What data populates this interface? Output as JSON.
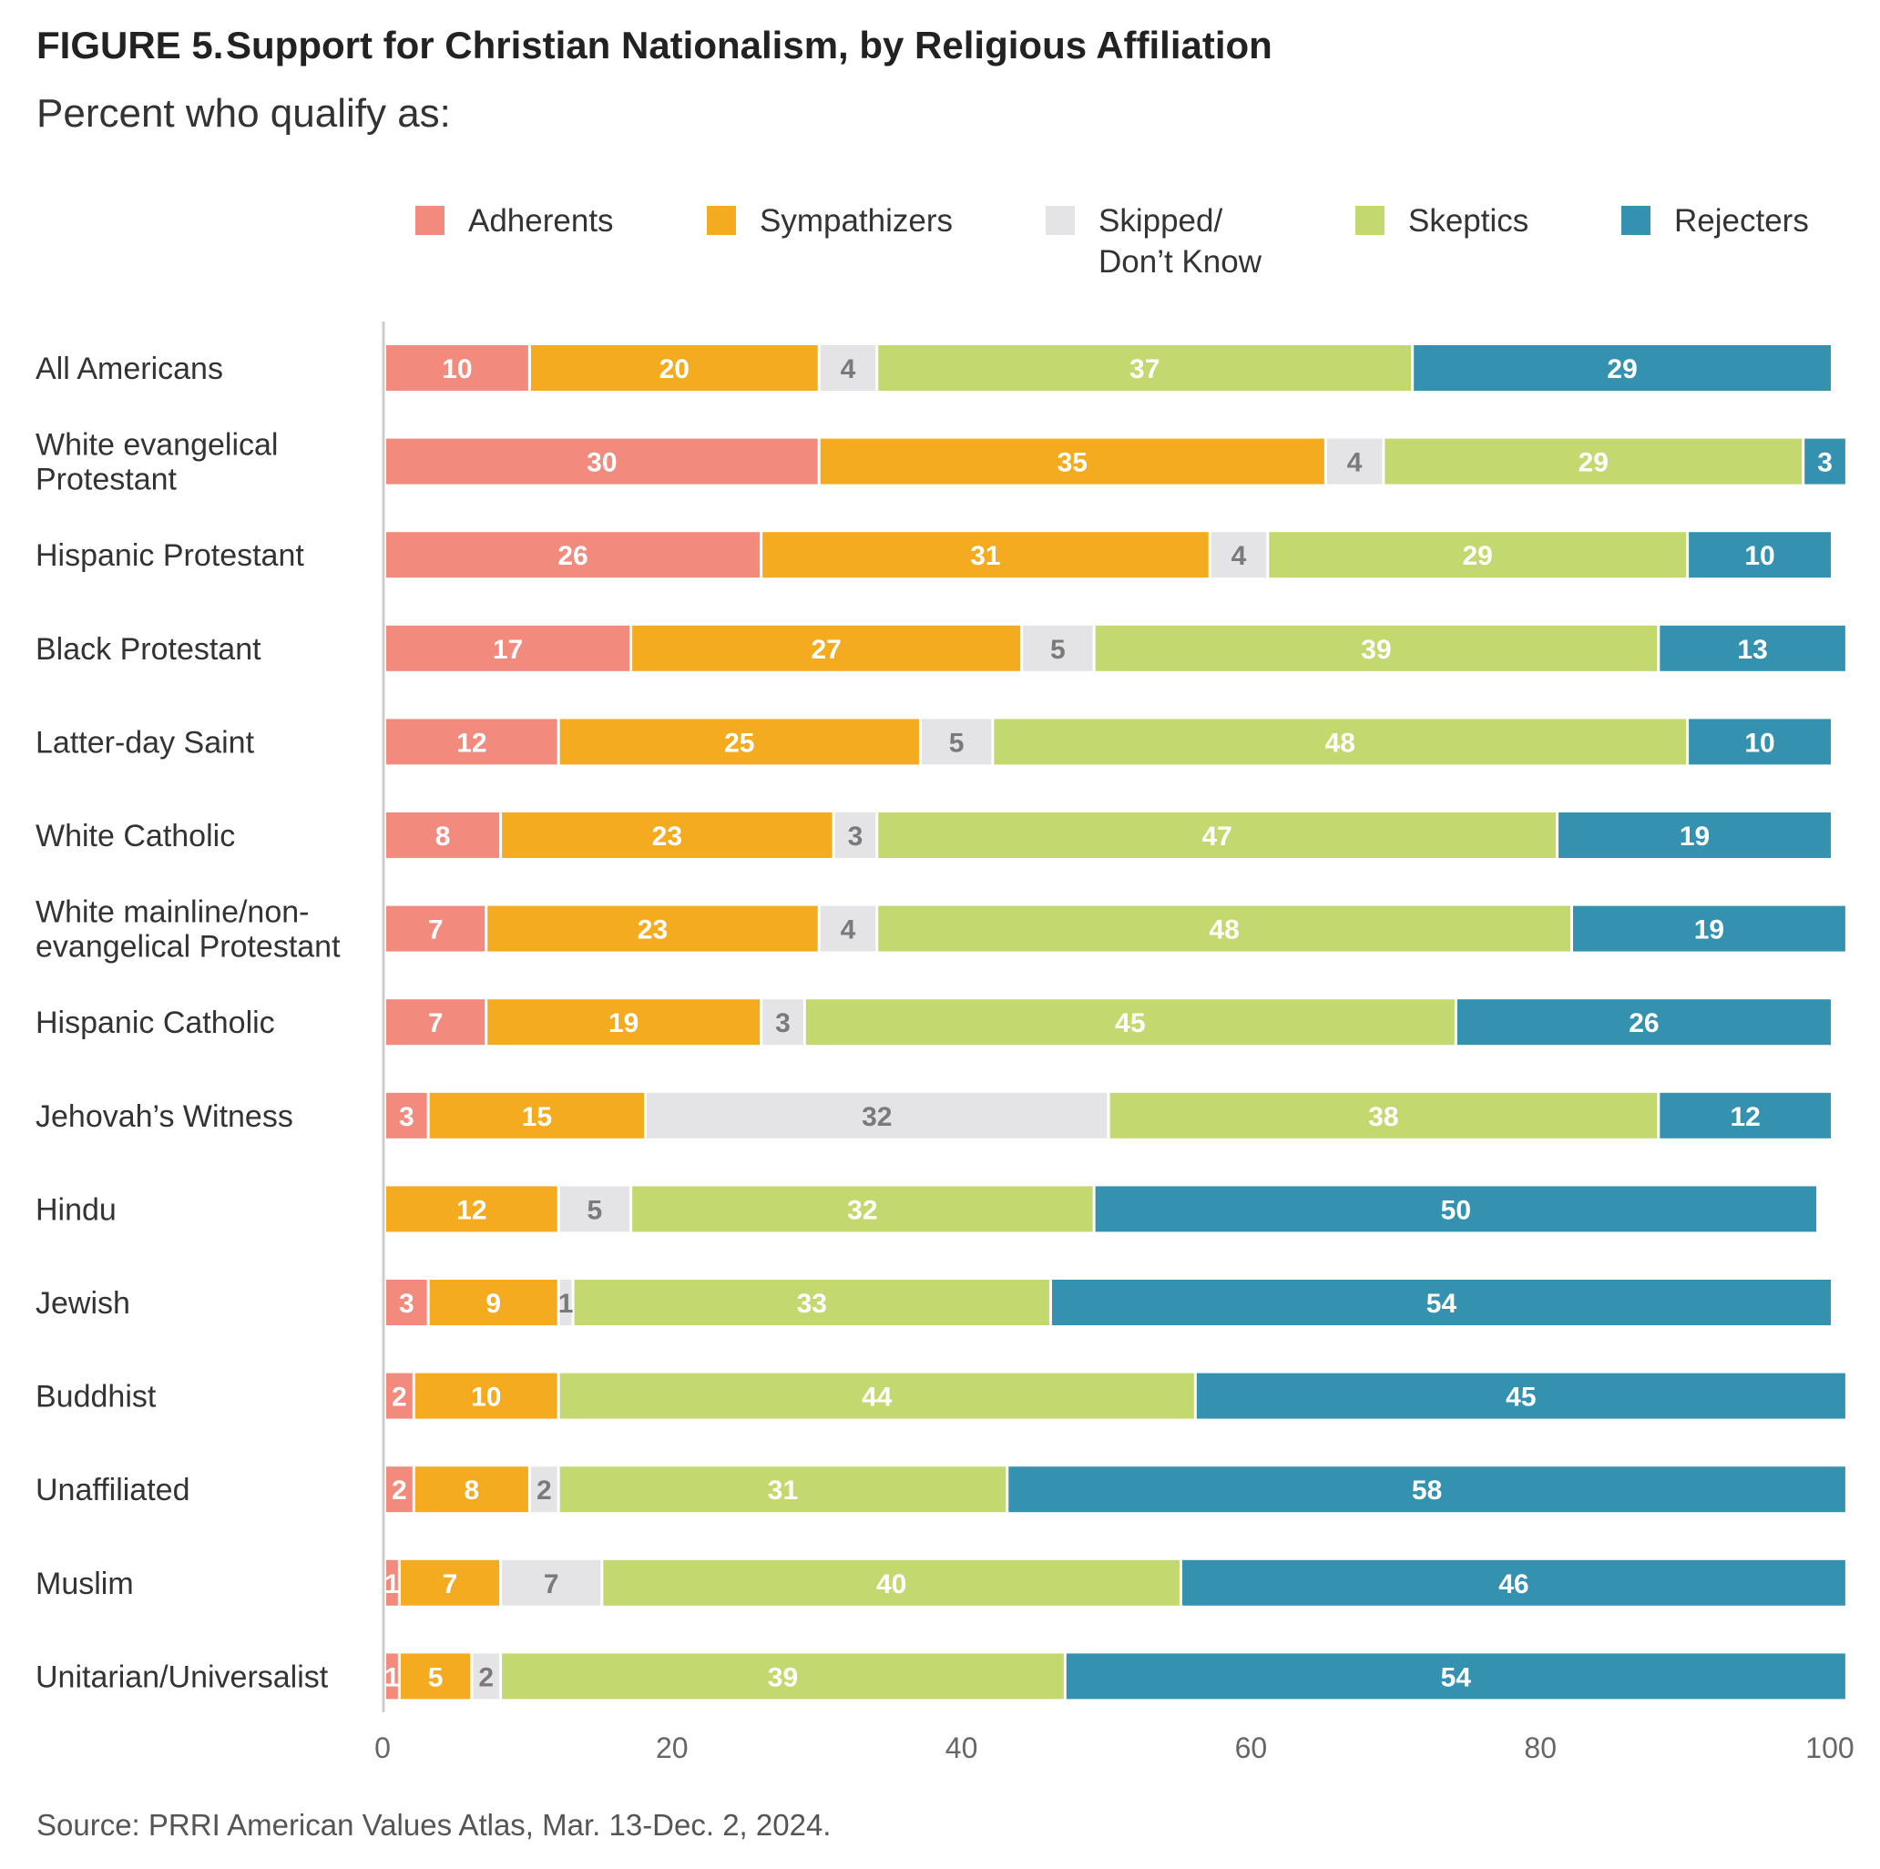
{
  "header": {
    "figure_label": "FIGURE 5.",
    "title": "Support for Christian Nationalism, by Religious Affiliation",
    "subtitle": "Percent who qualify as:"
  },
  "source": "Source: PRRI American Values Atlas, Mar. 13-Dec. 2, 2024.",
  "colors": {
    "Adherents": "#f28b7e",
    "Sympathizers": "#f5ab1f",
    "Skipped/ Don't Know": "#e4e4e6",
    "Skeptics": "#c3d86e",
    "Rejecters": "#3492b0",
    "light_text": "#ffffff",
    "dark_text": "#7a7a7a"
  },
  "chart_data": {
    "type": "bar",
    "orientation": "horizontal",
    "stacked": true,
    "xlim": [
      0,
      100
    ],
    "xticks": [
      0,
      20,
      40,
      60,
      80,
      100
    ],
    "legend_position": "top",
    "legend": [
      {
        "name": "Adherents",
        "lines": [
          "Adherents"
        ]
      },
      {
        "name": "Sympathizers",
        "lines": [
          "Sympathizers"
        ]
      },
      {
        "name": "Skipped/ Don't Know",
        "lines": [
          "Skipped/",
          "Don’t Know"
        ]
      },
      {
        "name": "Skeptics",
        "lines": [
          "Skeptics"
        ]
      },
      {
        "name": "Rejecters",
        "lines": [
          "Rejecters"
        ]
      }
    ],
    "categories": [
      {
        "label": [
          "All Americans"
        ]
      },
      {
        "label": [
          "White evangelical",
          "Protestant"
        ]
      },
      {
        "label": [
          "Hispanic Protestant"
        ]
      },
      {
        "label": [
          "Black Protestant"
        ]
      },
      {
        "label": [
          "Latter-day Saint"
        ]
      },
      {
        "label": [
          "White Catholic"
        ]
      },
      {
        "label": [
          "White mainline/non-",
          "evangelical Protestant"
        ]
      },
      {
        "label": [
          "Hispanic Catholic"
        ]
      },
      {
        "label": [
          "Jehovah’s Witness"
        ]
      },
      {
        "label": [
          "Hindu"
        ]
      },
      {
        "label": [
          "Jewish"
        ]
      },
      {
        "label": [
          "Buddhist"
        ]
      },
      {
        "label": [
          "Unaffiliated"
        ]
      },
      {
        "label": [
          "Muslim"
        ]
      },
      {
        "label": [
          "Unitarian/Universalist"
        ]
      }
    ],
    "series": [
      {
        "name": "Adherents",
        "values": [
          10,
          30,
          26,
          17,
          12,
          8,
          7,
          7,
          3,
          0,
          3,
          2,
          2,
          1,
          1
        ]
      },
      {
        "name": "Sympathizers",
        "values": [
          20,
          35,
          31,
          27,
          25,
          23,
          23,
          19,
          15,
          12,
          9,
          10,
          8,
          7,
          5
        ]
      },
      {
        "name": "Skipped/ Don't Know",
        "values": [
          4,
          4,
          4,
          5,
          5,
          3,
          4,
          3,
          32,
          5,
          1,
          0,
          2,
          7,
          2
        ]
      },
      {
        "name": "Skeptics",
        "values": [
          37,
          29,
          29,
          39,
          48,
          47,
          48,
          45,
          38,
          32,
          33,
          44,
          31,
          40,
          39
        ]
      },
      {
        "name": "Rejecters",
        "values": [
          29,
          3,
          10,
          13,
          10,
          19,
          19,
          26,
          12,
          50,
          54,
          45,
          58,
          46,
          54
        ]
      }
    ]
  }
}
